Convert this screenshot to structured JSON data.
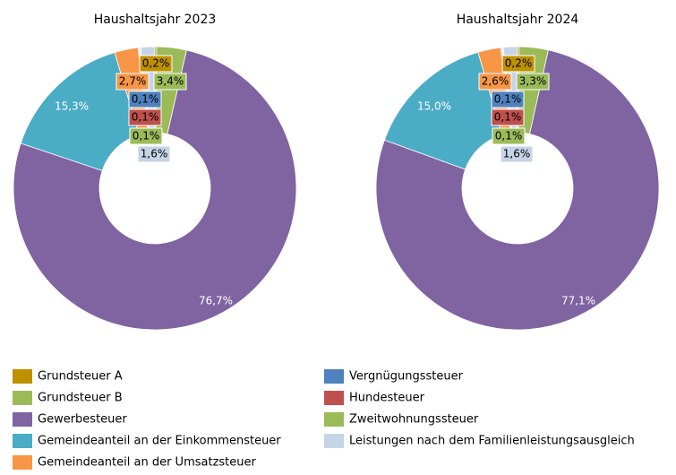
{
  "legend": {
    "entries": [
      "Grundsteuer A",
      "Grundsteuer B",
      "Gewerbesteuer",
      "Gemeindeanteil an der Einkommensteuer",
      "Gemeindeanteil an der Umsatzsteuer",
      "Vergnügungssteuer",
      "Hundesteuer",
      "Zweitwohnungssteuer",
      "Leistungen nach dem Familienleistungsausgleich"
    ],
    "colors": [
      "#bf9000",
      "#9bbb59",
      "#8064a2",
      "#4bacc6",
      "#f79646",
      "#4f81bd",
      "#c0504d",
      "#9bbb59",
      "#c6d4e8"
    ]
  },
  "chart_data": [
    {
      "type": "pie",
      "title": "Haushaltsjahr 2023",
      "values": [
        0.2,
        3.4,
        76.7,
        15.3,
        2.7,
        0.1,
        0.1,
        0.1,
        1.6
      ],
      "value_labels": [
        "0,2%",
        "3,4%",
        "76,7%",
        "15,3%",
        "2,7%",
        "0,1%",
        "0,1%",
        "0,1%",
        "1,6%"
      ]
    },
    {
      "type": "pie",
      "title": "Haushaltsjahr 2024",
      "values": [
        0.2,
        3.3,
        77.1,
        15.0,
        2.6,
        0.1,
        0.1,
        0.1,
        1.6
      ],
      "value_labels": [
        "0,2%",
        "3,3%",
        "77,1%",
        "15,0%",
        "2,6%",
        "0,1%",
        "0,1%",
        "0,1%",
        "1,6%"
      ]
    }
  ]
}
